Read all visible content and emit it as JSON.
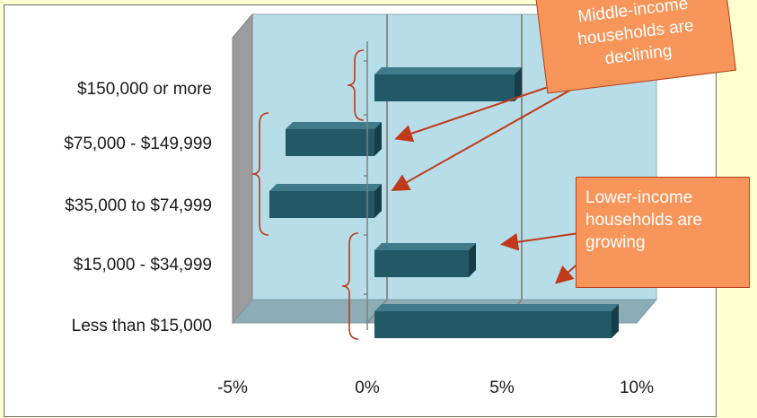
{
  "chart_data": {
    "type": "bar",
    "orientation": "horizontal",
    "style": "3d",
    "categories": [
      "$150,000 or more",
      "$75,000 - $149,999",
      "$35,000 to $74,999",
      "$15,000 - $34,999",
      "Less than $15,000"
    ],
    "values": [
      5.2,
      -3.3,
      -3.9,
      3.5,
      8.8
    ],
    "x_ticks": [
      "-5%",
      "0%",
      "5%",
      "10%"
    ],
    "xlim": [
      -5,
      10
    ],
    "gridlines": [
      0,
      5
    ],
    "annotations": [
      {
        "text": "Middle-income households are declining",
        "lines": [
          "Middle-income",
          "households are",
          "declining"
        ]
      },
      {
        "text": "Lower-income households are growing",
        "lines": [
          "Lower-income",
          "households are",
          "growing"
        ]
      }
    ]
  },
  "colors": {
    "background": "#FFFFD0",
    "plot_back": "#B7DEE8",
    "bar_front": "#215967",
    "bar_top": "#3F7B8A",
    "bar_side": "#163E48",
    "callout_fill": "#F7955A",
    "callout_border": "#B8401A",
    "arrow": "#C0391A",
    "bracket": "#C0391A"
  }
}
